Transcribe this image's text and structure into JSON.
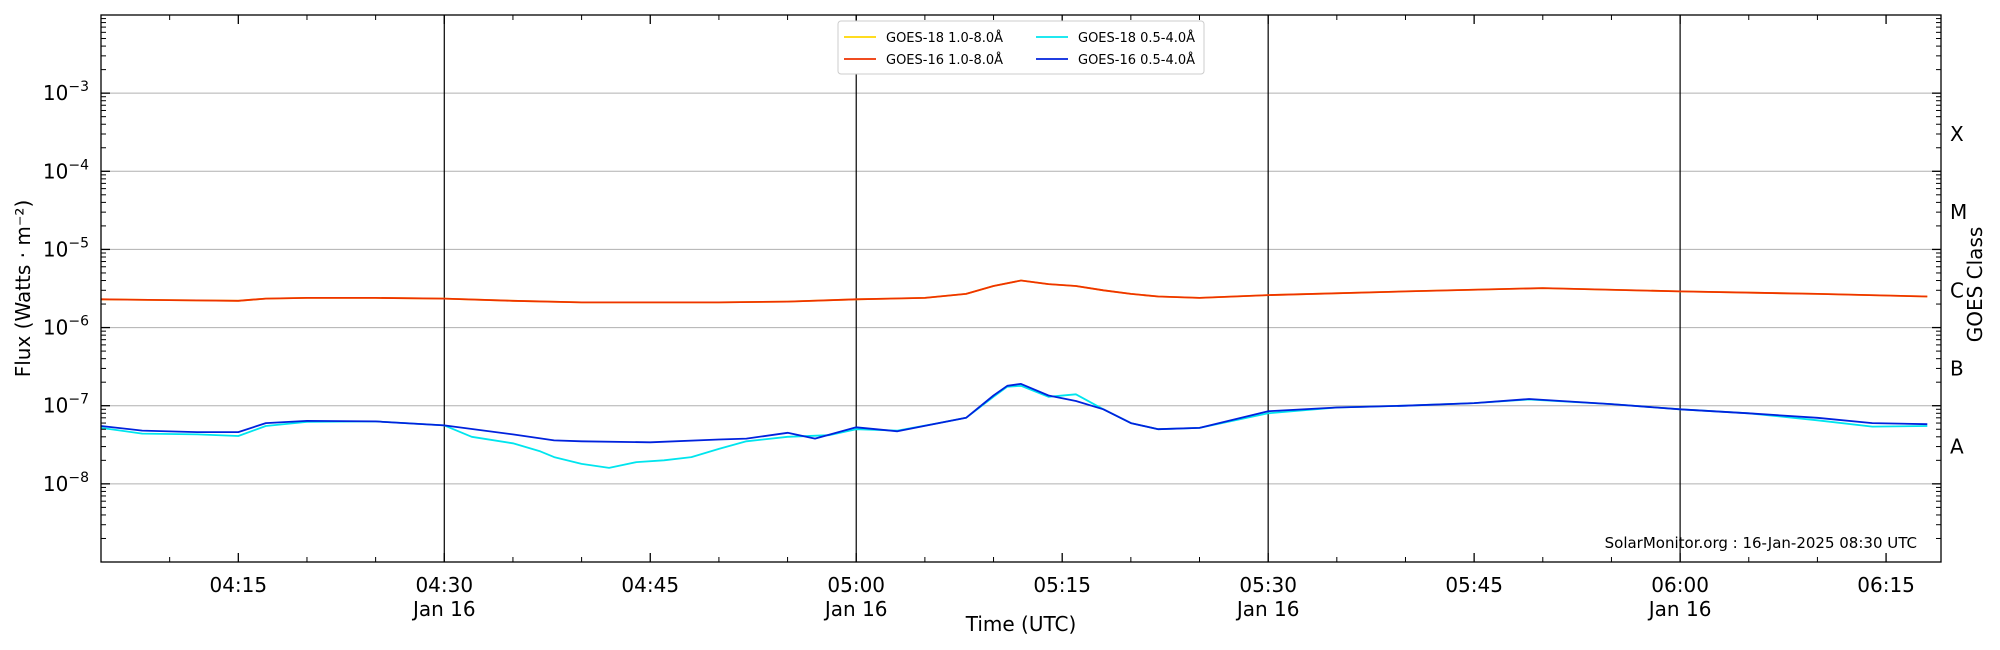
{
  "chart_data": {
    "type": "line",
    "xlabel": "Time (UTC)",
    "ylabel": "Flux (Watts · m⁻²)",
    "right_axis_label": "GOES Class",
    "credit": "SolarMonitor.org : 16-Jan-2025 08:30 UTC",
    "y_scale": "log",
    "ylim": [
      1e-09,
      0.01
    ],
    "xlim": [
      "04:05",
      "06:19"
    ],
    "grid": "horizontal",
    "legend_placement": "top-center",
    "y_ticks": [
      {
        "value": 1e-08,
        "mantissa": "10",
        "exponent": "−8"
      },
      {
        "value": 1e-07,
        "mantissa": "10",
        "exponent": "−7"
      },
      {
        "value": 1e-06,
        "mantissa": "10",
        "exponent": "−6"
      },
      {
        "value": 1e-05,
        "mantissa": "10",
        "exponent": "−5"
      },
      {
        "value": 0.0001,
        "mantissa": "10",
        "exponent": "−4"
      },
      {
        "value": 0.001,
        "mantissa": "10",
        "exponent": "−3"
      }
    ],
    "x_ticks": [
      {
        "time": "04:15",
        "label": "04:15",
        "sublabel": ""
      },
      {
        "time": "04:30",
        "label": "04:30",
        "sublabel": "Jan 16"
      },
      {
        "time": "04:45",
        "label": "04:45",
        "sublabel": ""
      },
      {
        "time": "05:00",
        "label": "05:00",
        "sublabel": "Jan 16"
      },
      {
        "time": "05:15",
        "label": "05:15",
        "sublabel": ""
      },
      {
        "time": "05:30",
        "label": "05:30",
        "sublabel": "Jan 16"
      },
      {
        "time": "05:45",
        "label": "05:45",
        "sublabel": ""
      },
      {
        "time": "06:00",
        "label": "06:00",
        "sublabel": "Jan 16"
      },
      {
        "time": "06:15",
        "label": "06:15",
        "sublabel": ""
      }
    ],
    "vertical_lines": [
      "04:30",
      "05:00",
      "05:30",
      "06:00"
    ],
    "goes_classes": [
      {
        "label": "X",
        "value": 0.0003
      },
      {
        "label": "M",
        "value": 3e-05
      },
      {
        "label": "C",
        "value": 3e-06
      },
      {
        "label": "B",
        "value": 3e-07
      },
      {
        "label": "A",
        "value": 3e-08
      }
    ],
    "series": [
      {
        "name": "GOES-18 1.0-8.0Å",
        "color": "#ffd700",
        "x": [
          "04:05",
          "04:10",
          "04:15",
          "04:17",
          "04:20",
          "04:25",
          "04:30",
          "04:35",
          "04:40",
          "04:45",
          "04:50",
          "04:55",
          "05:00",
          "05:05",
          "05:08",
          "05:10",
          "05:12",
          "05:14",
          "05:16",
          "05:18",
          "05:20",
          "05:22",
          "05:25",
          "05:30",
          "05:40",
          "05:50",
          "06:00",
          "06:10",
          "06:18"
        ],
        "y": [
          2.3e-06,
          2.25e-06,
          2.2e-06,
          2.35e-06,
          2.4e-06,
          2.4e-06,
          2.35e-06,
          2.2e-06,
          2.1e-06,
          2.1e-06,
          2.1e-06,
          2.15e-06,
          2.3e-06,
          2.4e-06,
          2.7e-06,
          3.4e-06,
          4e-06,
          3.6e-06,
          3.4e-06,
          3e-06,
          2.7e-06,
          2.5e-06,
          2.4e-06,
          2.6e-06,
          2.9e-06,
          3.2e-06,
          2.9e-06,
          2.7e-06,
          2.5e-06
        ]
      },
      {
        "name": "GOES-16 1.0-8.0Å",
        "color": "#ee3300",
        "x": [
          "04:05",
          "04:10",
          "04:15",
          "04:17",
          "04:20",
          "04:25",
          "04:30",
          "04:35",
          "04:40",
          "04:45",
          "04:50",
          "04:55",
          "05:00",
          "05:05",
          "05:08",
          "05:10",
          "05:12",
          "05:14",
          "05:16",
          "05:18",
          "05:20",
          "05:22",
          "05:25",
          "05:30",
          "05:40",
          "05:50",
          "06:00",
          "06:10",
          "06:18"
        ],
        "y": [
          2.3e-06,
          2.25e-06,
          2.2e-06,
          2.35e-06,
          2.4e-06,
          2.4e-06,
          2.35e-06,
          2.2e-06,
          2.1e-06,
          2.1e-06,
          2.1e-06,
          2.15e-06,
          2.3e-06,
          2.4e-06,
          2.7e-06,
          3.4e-06,
          4e-06,
          3.6e-06,
          3.4e-06,
          3e-06,
          2.7e-06,
          2.5e-06,
          2.4e-06,
          2.6e-06,
          2.9e-06,
          3.2e-06,
          2.9e-06,
          2.7e-06,
          2.5e-06
        ]
      },
      {
        "name": "GOES-18 0.5-4.0Å",
        "color": "#00e5ee",
        "x": [
          "04:05",
          "04:08",
          "04:12",
          "04:15",
          "04:17",
          "04:20",
          "04:25",
          "04:30",
          "04:32",
          "04:35",
          "04:37",
          "04:38",
          "04:40",
          "04:42",
          "04:44",
          "04:46",
          "04:48",
          "04:50",
          "04:52",
          "04:55",
          "04:58",
          "05:00",
          "05:03",
          "05:06",
          "05:08",
          "05:10",
          "05:11",
          "05:12",
          "05:14",
          "05:16",
          "05:18",
          "05:20",
          "05:22",
          "05:25",
          "05:30",
          "05:35",
          "05:40",
          "05:45",
          "05:49",
          "05:55",
          "06:00",
          "06:05",
          "06:10",
          "06:14",
          "06:18"
        ],
        "y": [
          5.2e-08,
          4.4e-08,
          4.3e-08,
          4.1e-08,
          5.5e-08,
          6.2e-08,
          6.3e-08,
          5.6e-08,
          4e-08,
          3.3e-08,
          2.6e-08,
          2.2e-08,
          1.8e-08,
          1.6e-08,
          1.9e-08,
          2e-08,
          2.2e-08,
          2.8e-08,
          3.5e-08,
          4e-08,
          4.2e-08,
          5e-08,
          4.8e-08,
          6e-08,
          7e-08,
          1.3e-07,
          1.75e-07,
          1.8e-07,
          1.3e-07,
          1.4e-07,
          9e-08,
          6e-08,
          5e-08,
          5.2e-08,
          8e-08,
          9.5e-08,
          1e-07,
          1.08e-07,
          1.2e-07,
          1.05e-07,
          9e-08,
          8e-08,
          6.5e-08,
          5.4e-08,
          5.5e-08
        ]
      },
      {
        "name": "GOES-16 0.5-4.0Å",
        "color": "#0022dd",
        "x": [
          "04:05",
          "04:08",
          "04:12",
          "04:15",
          "04:17",
          "04:20",
          "04:25",
          "04:30",
          "04:35",
          "04:38",
          "04:40",
          "04:45",
          "04:50",
          "04:52",
          "04:55",
          "04:57",
          "05:00",
          "05:03",
          "05:06",
          "05:08",
          "05:10",
          "05:11",
          "05:12",
          "05:14",
          "05:16",
          "05:18",
          "05:20",
          "05:22",
          "05:25",
          "05:30",
          "05:35",
          "05:40",
          "05:45",
          "05:49",
          "05:55",
          "06:00",
          "06:05",
          "06:10",
          "06:14",
          "06:18"
        ],
        "y": [
          5.5e-08,
          4.8e-08,
          4.6e-08,
          4.6e-08,
          6e-08,
          6.4e-08,
          6.3e-08,
          5.6e-08,
          4.3e-08,
          3.6e-08,
          3.5e-08,
          3.4e-08,
          3.7e-08,
          3.8e-08,
          4.5e-08,
          3.8e-08,
          5.3e-08,
          4.7e-08,
          6e-08,
          7e-08,
          1.35e-07,
          1.8e-07,
          1.9e-07,
          1.35e-07,
          1.15e-07,
          9e-08,
          6e-08,
          5e-08,
          5.2e-08,
          8.5e-08,
          9.5e-08,
          1e-07,
          1.08e-07,
          1.22e-07,
          1.05e-07,
          9e-08,
          8e-08,
          7e-08,
          6e-08,
          5.8e-08
        ]
      }
    ]
  }
}
